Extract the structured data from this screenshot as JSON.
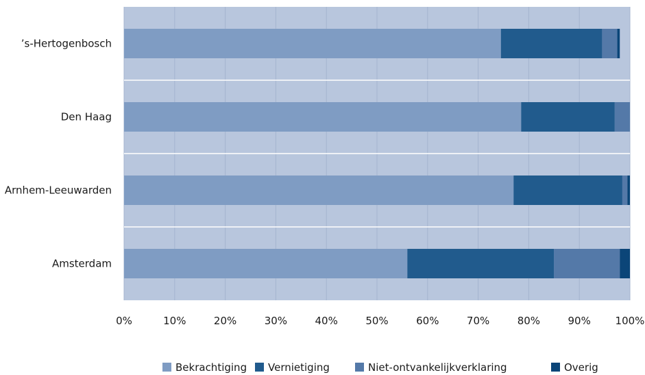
{
  "chart_data": {
    "type": "bar",
    "orientation": "horizontal",
    "stacked": true,
    "categories": [
      "Amsterdam",
      "Arnhem-Leeuwarden",
      "Den Haag",
      "’s-Hertogenbosch"
    ],
    "series": [
      {
        "name": "Bekrachtiging",
        "color": "#7f9cc3",
        "values": [
          56.0,
          77.0,
          78.5,
          74.5
        ]
      },
      {
        "name": "Vernietiging",
        "color": "#215b8d",
        "values": [
          29.0,
          21.5,
          18.5,
          20.0
        ]
      },
      {
        "name": "Niet-ontvankelijkverklaring",
        "color": "#5479a8",
        "values": [
          13.0,
          1.0,
          3.0,
          3.0
        ]
      },
      {
        "name": "Overig",
        "color": "#0b4578",
        "values": [
          2.0,
          0.5,
          0.0,
          0.5
        ]
      }
    ],
    "x_ticks": [
      "0%",
      "10%",
      "20%",
      "30%",
      "40%",
      "50%",
      "60%",
      "70%",
      "80%",
      "90%",
      "100%"
    ],
    "xlim": [
      0,
      100
    ],
    "legend_position": "bottom",
    "background_color": "#b8c6dd",
    "grid": "vertical"
  }
}
